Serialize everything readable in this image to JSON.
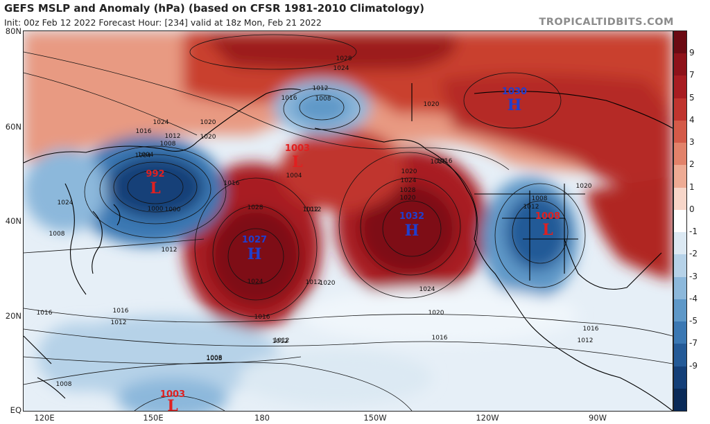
{
  "header": {
    "title": "GEFS MSLP and Anomaly (hPa) (based on CFSR 1981-2010 Climatology)",
    "subtitle": "Init: 00z Feb 12 2022   Forecast Hour: [234]   valid at 18z Mon, Feb 21 2022",
    "brand": "TROPICALTIDBITS.COM"
  },
  "axes": {
    "lat_labels": [
      "80N",
      "60N",
      "40N",
      "20N",
      "EQ"
    ],
    "lon_labels": [
      "120E",
      "150E",
      "180",
      "150W",
      "120W",
      "90W"
    ]
  },
  "colorbar": {
    "labels": [
      "9",
      "7",
      "5",
      "4",
      "3",
      "2",
      "1",
      "0",
      "-1",
      "-2",
      "-3",
      "-4",
      "-5",
      "-7",
      "-9"
    ],
    "colors": [
      "#6b0a12",
      "#8e1219",
      "#a81c21",
      "#c0342e",
      "#d45a48",
      "#e2826a",
      "#eeab94",
      "#f7d6c9",
      "#ffffff",
      "#dce9f3",
      "#b6d2e8",
      "#8cb8db",
      "#5e98c8",
      "#3b78b3",
      "#245a97",
      "#143f78",
      "#0a2a58"
    ]
  },
  "centers": [
    {
      "type": "L",
      "value": "992",
      "color": "#e02020"
    },
    {
      "type": "L",
      "value": "1003",
      "color": "#e02020"
    },
    {
      "type": "H",
      "value": "1027",
      "color": "#1f3fcf"
    },
    {
      "type": "H",
      "value": "1032",
      "color": "#1f3fcf"
    },
    {
      "type": "H",
      "value": "1030",
      "color": "#1f3fcf"
    },
    {
      "type": "L",
      "value": "1008",
      "color": "#e02020"
    },
    {
      "type": "L",
      "value": "1003",
      "color": "#e02020"
    }
  ],
  "isobar_labels": [
    "1028",
    "1024",
    "1016",
    "1012",
    "1008",
    "1004",
    "1000",
    "1020",
    "1016",
    "1012",
    "1020",
    "1024",
    "1016",
    "1012",
    "1008",
    "1004",
    "1028",
    "1024",
    "1020",
    "1028",
    "1024",
    "1020",
    "1016",
    "1012",
    "1008",
    "1012",
    "1016",
    "1012",
    "1016",
    "1024",
    "1020",
    "1012",
    "1008",
    "1020",
    "1016",
    "1012",
    "1016",
    "1012",
    "1008",
    "1008",
    "1024",
    "1020",
    "1020",
    "1016",
    "1012",
    "1012",
    "1016",
    "1008",
    "1000",
    "1004"
  ]
}
